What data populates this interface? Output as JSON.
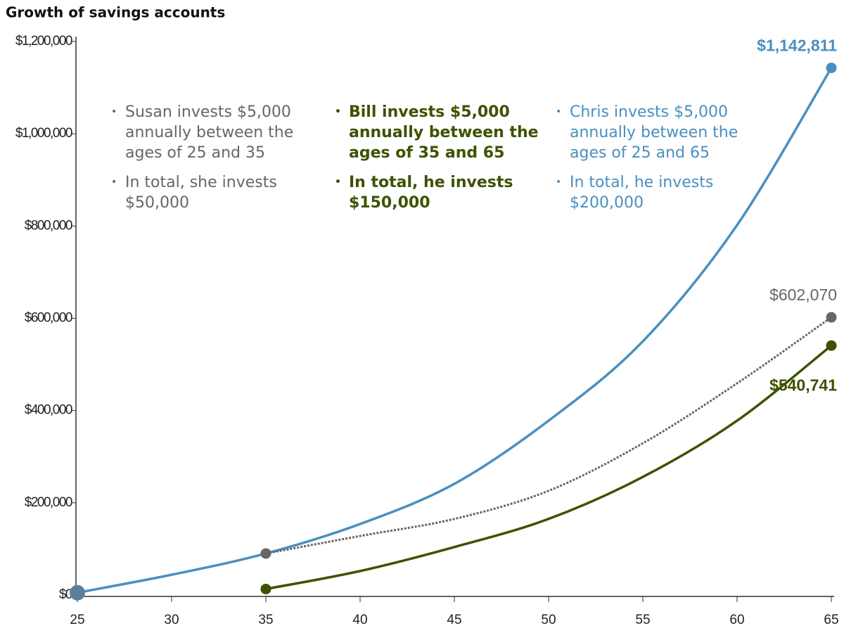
{
  "chart_data": {
    "type": "line",
    "title": "Growth of savings accounts",
    "x": [
      25,
      30,
      35,
      40,
      45,
      50,
      55,
      60,
      65
    ],
    "series": [
      {
        "name": "Chris",
        "color": "#4a8fc0",
        "values": [
          5000,
          44000,
          90000,
          154000,
          241000,
          378000,
          550000,
          802000,
          1142811
        ],
        "value_labels": [
          null,
          null,
          null,
          null,
          null,
          null,
          null,
          null,
          "$1,142,811"
        ]
      },
      {
        "name": "Susan",
        "color": "#666666",
        "dash": true,
        "values": [
          null,
          null,
          90000,
          128000,
          165000,
          226000,
          329000,
          459000,
          602070
        ],
        "value_labels": [
          null,
          null,
          null,
          null,
          null,
          null,
          null,
          null,
          "$602,070"
        ]
      },
      {
        "name": "Bill",
        "color": "#3d5200",
        "values": [
          null,
          null,
          13000,
          52000,
          104000,
          165000,
          256000,
          378000,
          540741
        ],
        "value_labels": [
          null,
          null,
          null,
          null,
          null,
          null,
          null,
          null,
          "$540,741"
        ]
      }
    ],
    "annotations": [
      {
        "color": "#666666",
        "items": [
          "Susan invests $5,000 annually between the ages of 25 and 35",
          "In total, she invests $50,000"
        ]
      },
      {
        "color": "#3d5200",
        "items": [
          "Bill invests $5,000 annually between the ages of 35 and 65",
          "In total, he invests $150,000"
        ]
      },
      {
        "color": "#4a8fc0",
        "items": [
          "Chris invests $5,000 annually between the ages of 25 and 65",
          "In total, he invests $200,000"
        ]
      }
    ],
    "xlim": [
      25,
      65
    ],
    "xticks": [
      25,
      30,
      35,
      40,
      45,
      50,
      55,
      60,
      65
    ],
    "ylim": [
      0,
      1200000
    ],
    "yticks": [
      {
        "value": 0,
        "label": "$0"
      },
      {
        "value": 200000,
        "label": "$200,000"
      },
      {
        "value": 400000,
        "label": "$400,000"
      },
      {
        "value": 600000,
        "label": "$600,000"
      },
      {
        "value": 800000,
        "label": "$800,000"
      },
      {
        "value": 1000000,
        "label": "$1,000,000"
      },
      {
        "value": 1200000,
        "label": "$1,200,000"
      }
    ]
  }
}
